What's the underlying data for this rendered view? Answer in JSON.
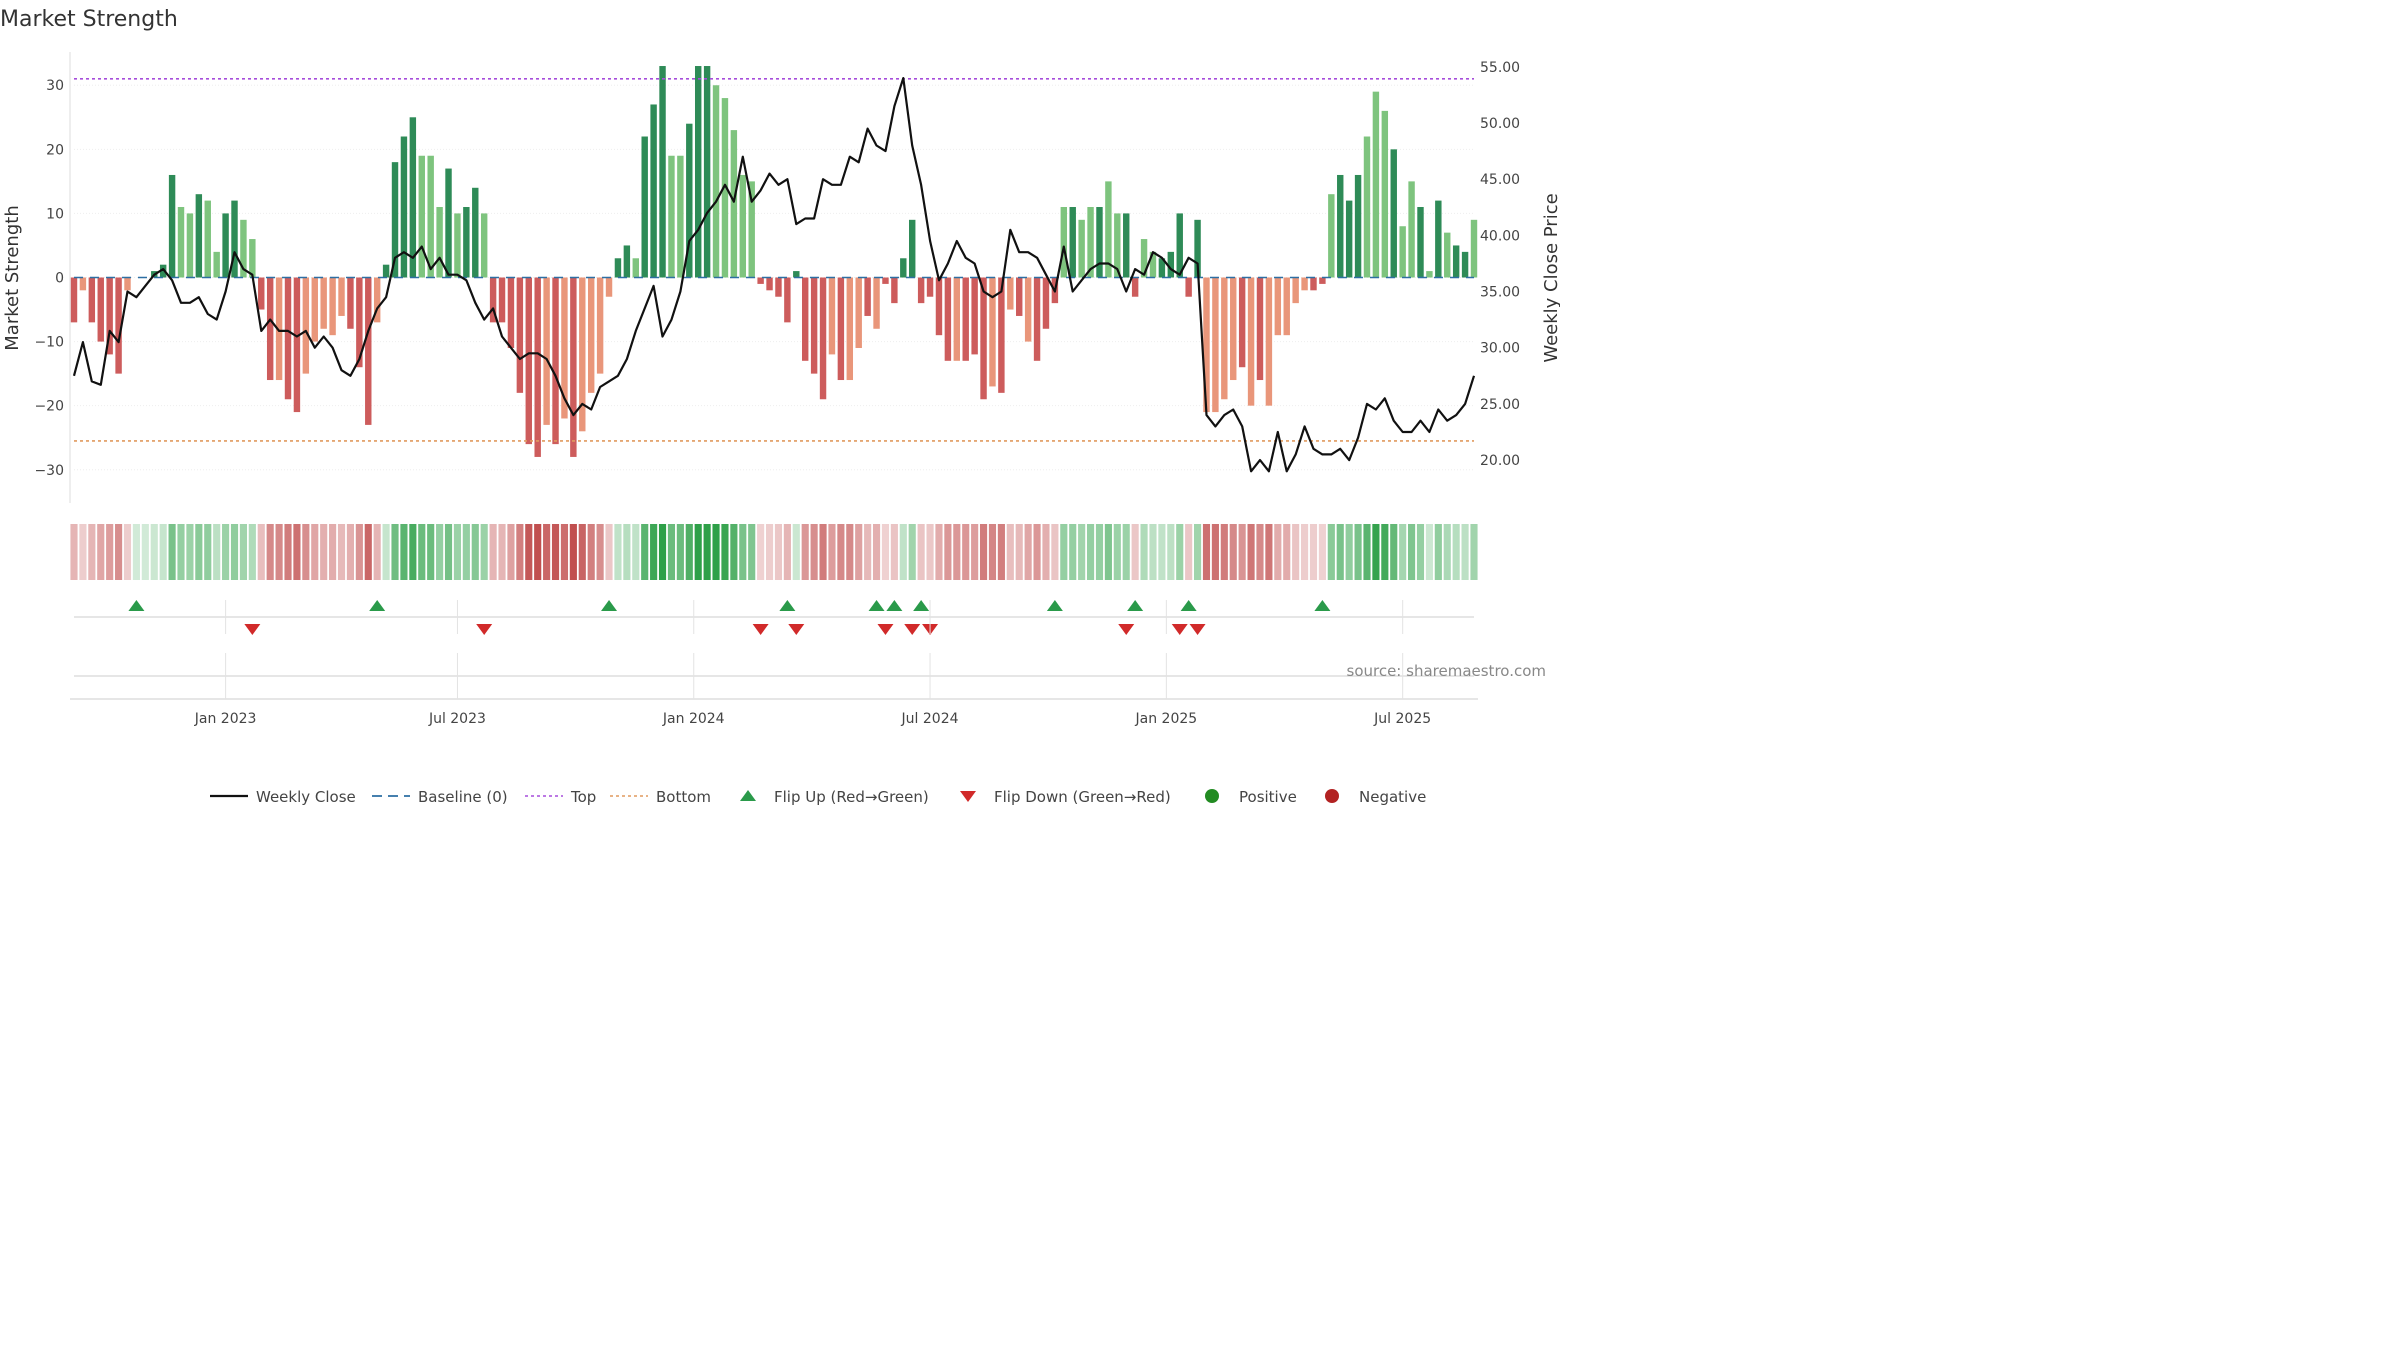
{
  "title": "Market Strength",
  "source": "source: sharemaestro.com",
  "chart_data": {
    "type": "bar",
    "title": "Market Strength",
    "ylabel_left": "Market Strength",
    "ylabel_right": "Weekly Close Price",
    "ylim_left": [
      -35.5,
      35.5
    ],
    "ylim_right": [
      16.0,
      56.5
    ],
    "yticks_left": [
      30,
      20,
      10,
      0,
      -10,
      -20,
      -30
    ],
    "ytick_labels_left": [
      "30",
      "20",
      "10",
      "0",
      "−10",
      "−20",
      "−30"
    ],
    "yticks_right": [
      55,
      50,
      45,
      40,
      35,
      30,
      25,
      20
    ],
    "ytick_labels_right": [
      "55.00",
      "50.00",
      "45.00",
      "40.00",
      "35.00",
      "30.00",
      "25.00",
      "20.00"
    ],
    "xticks": [
      17,
      43,
      69.5,
      96,
      122.5,
      149
    ],
    "xtick_labels": [
      "Jan 2023",
      "Jul 2023",
      "Jan 2024",
      "Jul 2024",
      "Jan 2025",
      "Jul 2025"
    ],
    "top_line": 31,
    "bottom_line": -25.5,
    "strength": [
      -7,
      -2,
      -7,
      -10,
      -12,
      -15,
      -2,
      0,
      0,
      1,
      2,
      16,
      11,
      10,
      13,
      12,
      4,
      10,
      12,
      9,
      6,
      -5,
      -16,
      -16,
      -19,
      -21,
      -15,
      -10,
      -8,
      -9,
      -6,
      -8,
      -14,
      -23,
      -7,
      2,
      18,
      22,
      25,
      19,
      19,
      11,
      17,
      10,
      11,
      14,
      10,
      -7,
      -7,
      -11,
      -18,
      -26,
      -28,
      -23,
      -26,
      -22,
      -28,
      -24,
      -18,
      -15,
      -3,
      3,
      5,
      3,
      22,
      27,
      33,
      19,
      19,
      24,
      33,
      33,
      30,
      28,
      23,
      16,
      15,
      -1,
      -2,
      -3,
      -7,
      1,
      -13,
      -15,
      -19,
      -12,
      -16,
      -16,
      -11,
      -6,
      -8,
      -1,
      -4,
      3,
      9,
      -4,
      -3,
      -9,
      -13,
      -13,
      -13,
      -12,
      -19,
      -17,
      -18,
      -5,
      -6,
      -10,
      -13,
      -8,
      -4,
      11,
      11,
      9,
      11,
      11,
      15,
      10,
      10,
      -3,
      6,
      4,
      3,
      4,
      10,
      -3,
      9,
      -21,
      -21,
      -19,
      -16,
      -14,
      -20,
      -16,
      -20,
      -9,
      -9,
      -4,
      -2,
      -2,
      -1,
      13,
      16,
      12,
      16,
      22,
      29,
      26,
      20,
      8,
      15,
      11,
      1,
      12,
      7,
      5,
      4,
      9
    ],
    "strength_shade": [
      "d",
      "l",
      "d",
      "d",
      "d",
      "d",
      "l",
      "d",
      "d",
      "d",
      "d",
      "d",
      "l",
      "l",
      "d",
      "l",
      "l",
      "d",
      "d",
      "l",
      "l",
      "d",
      "d",
      "l",
      "d",
      "d",
      "l",
      "l",
      "l",
      "l",
      "l",
      "d",
      "d",
      "d",
      "l",
      "d",
      "d",
      "d",
      "d",
      "l",
      "l",
      "l",
      "d",
      "l",
      "d",
      "d",
      "l",
      "d",
      "d",
      "d",
      "d",
      "d",
      "d",
      "l",
      "d",
      "l",
      "d",
      "l",
      "l",
      "l",
      "l",
      "d",
      "d",
      "l",
      "d",
      "d",
      "d",
      "l",
      "l",
      "d",
      "d",
      "d",
      "l",
      "l",
      "l",
      "l",
      "l",
      "d",
      "d",
      "d",
      "d",
      "d",
      "d",
      "d",
      "d",
      "l",
      "d",
      "l",
      "l",
      "d",
      "l",
      "d",
      "d",
      "d",
      "d",
      "d",
      "d",
      "d",
      "d",
      "l",
      "d",
      "d",
      "d",
      "l",
      "d",
      "l",
      "d",
      "l",
      "d",
      "d",
      "d",
      "l",
      "d",
      "l",
      "l",
      "d",
      "l",
      "l",
      "d",
      "d",
      "l",
      "l",
      "d",
      "d",
      "d",
      "d",
      "d",
      "l",
      "l",
      "l",
      "l",
      "d",
      "l",
      "d",
      "l",
      "l",
      "l",
      "l",
      "l",
      "d",
      "d",
      "l",
      "d",
      "d",
      "d",
      "l",
      "l",
      "l",
      "d",
      "l",
      "l",
      "d",
      "l",
      "d",
      "l",
      "d",
      "d"
    ],
    "weekly_close": [
      27.5,
      30.5,
      27.0,
      26.7,
      31.5,
      30.5,
      35.0,
      34.5,
      35.5,
      36.5,
      37.0,
      36.0,
      34.0,
      34.0,
      34.5,
      33.0,
      32.5,
      35.0,
      38.5,
      37.0,
      36.5,
      31.5,
      32.5,
      31.5,
      31.5,
      31.0,
      31.5,
      30.0,
      31.0,
      30.0,
      28.0,
      27.5,
      29.0,
      31.5,
      33.5,
      34.5,
      38.0,
      38.5,
      38.0,
      39.0,
      37.0,
      38.0,
      36.5,
      36.5,
      36.0,
      34.0,
      32.5,
      33.5,
      31.0,
      30.0,
      29.0,
      29.5,
      29.5,
      29.0,
      27.5,
      25.5,
      24.0,
      25.0,
      24.5,
      26.5,
      27.0,
      27.5,
      29.0,
      31.5,
      33.5,
      35.5,
      31.0,
      32.5,
      35.0,
      39.5,
      40.5,
      42.0,
      43.0,
      44.5,
      43.0,
      47.0,
      43.0,
      44.0,
      45.5,
      44.5,
      45.0,
      41.0,
      41.5,
      41.5,
      45.0,
      44.5,
      44.5,
      47.0,
      46.5,
      49.5,
      48.0,
      47.5,
      51.5,
      54.0,
      48.0,
      44.5,
      39.5,
      36.0,
      37.5,
      39.5,
      38.0,
      37.5,
      35.0,
      34.5,
      35.0,
      40.5,
      38.5,
      38.5,
      38.0,
      36.5,
      35.0,
      39.0,
      35.0,
      36.0,
      37.0,
      37.5,
      37.5,
      37.0,
      35.0,
      37.0,
      36.5,
      38.5,
      38.0,
      37.0,
      36.5,
      38.0,
      37.5,
      24.0,
      23.0,
      24.0,
      24.5,
      23.0,
      19.0,
      20.0,
      19.0,
      22.5,
      19.0,
      20.5,
      23.0,
      21.0,
      20.5,
      20.5,
      21.0,
      20.0,
      22.0,
      25.0,
      24.5,
      25.5,
      23.5,
      22.5,
      22.5,
      23.5,
      22.5,
      24.5,
      23.5,
      24.0,
      25.0,
      27.5
    ],
    "flip_up_weeks": [
      7,
      34,
      60,
      80,
      90,
      92,
      95,
      110,
      119,
      125,
      140
    ],
    "flip_down_weeks": [
      20,
      46,
      77,
      81,
      91,
      94,
      96,
      118,
      124,
      126
    ],
    "legend": [
      {
        "label": "Weekly Close",
        "kind": "line",
        "color": "#111111"
      },
      {
        "label": "Baseline (0)",
        "kind": "dash",
        "color": "#2d6fa3"
      },
      {
        "label": "Top",
        "kind": "dots",
        "color": "#a64ddb"
      },
      {
        "label": "Bottom",
        "kind": "dots",
        "color": "#e09a5f"
      },
      {
        "label": "Flip Up (Red→Green)",
        "kind": "tri-up",
        "color": "#2a9a4a"
      },
      {
        "label": "Flip Down (Green→Red)",
        "kind": "tri-down",
        "color": "#d12a2a"
      },
      {
        "label": "Positive",
        "kind": "circle",
        "color": "#228b22"
      },
      {
        "label": "Negative",
        "kind": "circle",
        "color": "#b22222"
      }
    ]
  },
  "colors": {
    "pos_dark": "#2e8b57",
    "pos_light": "#7ec47e",
    "neg_dark": "#cd5c5c",
    "neg_light": "#e9967a",
    "close_line": "#111111",
    "baseline": "#2d6fa3",
    "top": "#a64ddb",
    "bottom": "#e09a5f",
    "flip_up": "#2a9a4a",
    "flip_down": "#d12a2a"
  }
}
